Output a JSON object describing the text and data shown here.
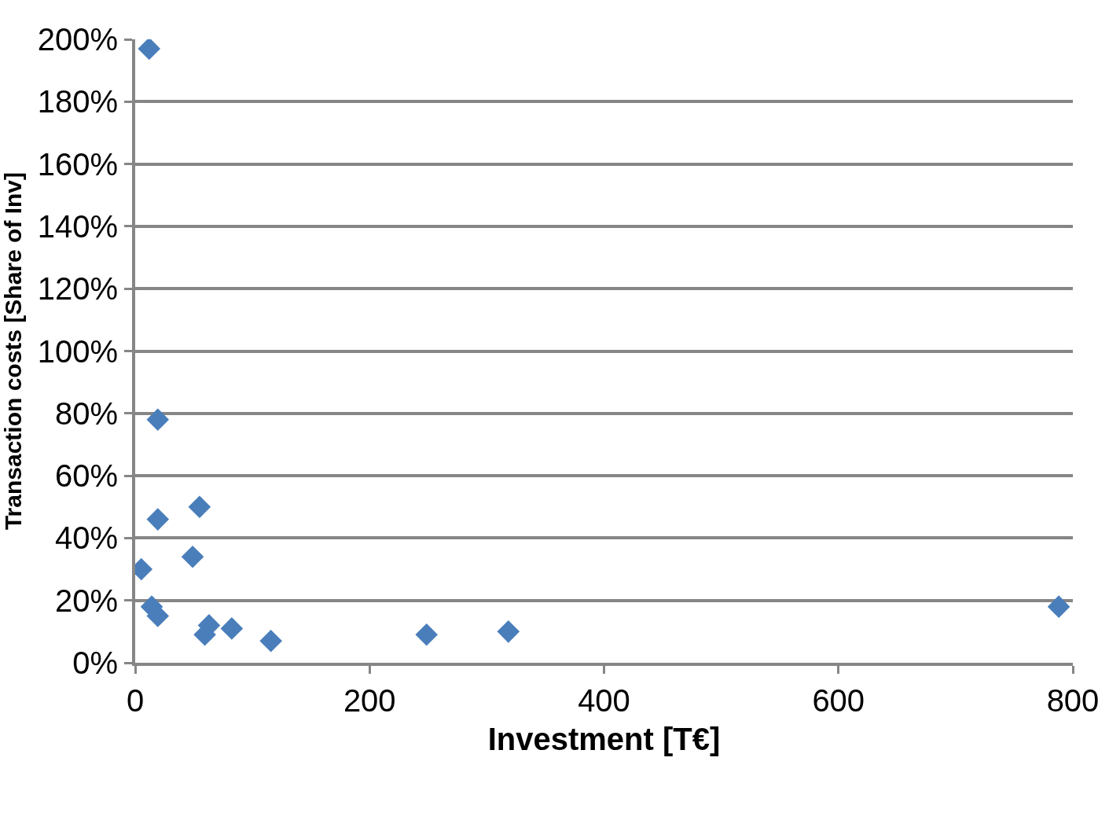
{
  "chart_data": {
    "type": "scatter",
    "xlabel": "Investment [T€]",
    "ylabel": "Transaction costs [Share of Inv]",
    "x": [
      11.9,
      19.3,
      19.3,
      54.9,
      49,
      5.2,
      14.1,
      19.3,
      63,
      59.4,
      82.4,
      115.8,
      248.6,
      318.4,
      788
    ],
    "series": [
      {
        "color": "#4a7ebb",
        "values": [
          197,
          78,
          46,
          50,
          34,
          30,
          18,
          15,
          12,
          9,
          11,
          7,
          9,
          10,
          18
        ]
      }
    ],
    "xlim": [
      0,
      800
    ],
    "xticks": [
      0,
      200,
      400,
      600,
      800
    ],
    "ylim": [
      0,
      200
    ],
    "yticks": [
      {
        "value": 0,
        "label": "0%"
      },
      {
        "value": 20,
        "label": "20%"
      },
      {
        "value": 40,
        "label": "40%"
      },
      {
        "value": 60,
        "label": "60%"
      },
      {
        "value": 80,
        "label": "80%"
      },
      {
        "value": 100,
        "label": "100%"
      },
      {
        "value": 120,
        "label": "120%"
      },
      {
        "value": 140,
        "label": "140%"
      },
      {
        "value": 160,
        "label": "160%"
      },
      {
        "value": 180,
        "label": "180%"
      },
      {
        "value": 200,
        "label": "200%"
      }
    ],
    "grid": "y",
    "marker": "diamond"
  }
}
